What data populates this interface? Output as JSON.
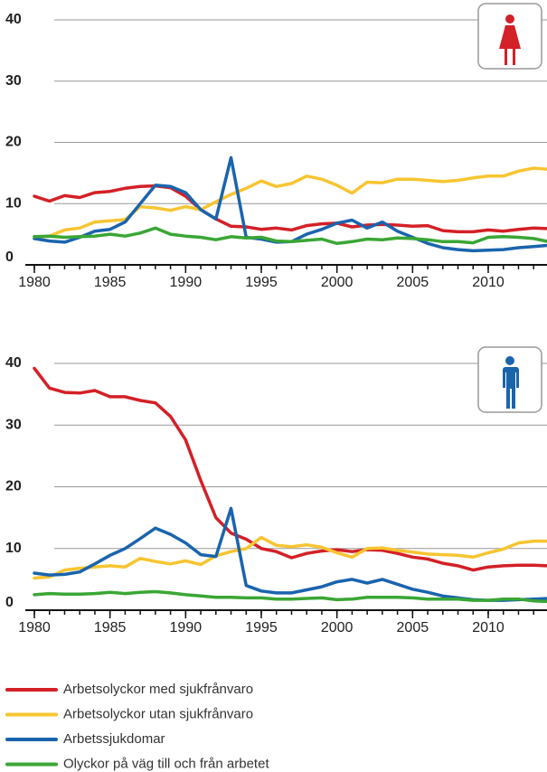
{
  "legend": [
    {
      "name": "Arbetsolyckor med sjukfrånvaro",
      "color": "#d42027"
    },
    {
      "name": "Arbetsolyckor utan sjukfrånvaro",
      "color": "#f7c531"
    },
    {
      "name": "Arbetssjukdomar",
      "color": "#1a64ad"
    },
    {
      "name": "Olyckor på väg till och från arbetet",
      "color": "#3aa635"
    }
  ],
  "chart_data": [
    {
      "type": "line",
      "x": [
        1980,
        1981,
        1982,
        1983,
        1984,
        1985,
        1986,
        1987,
        1988,
        1989,
        1990,
        1991,
        1992,
        1993,
        1994,
        1995,
        1996,
        1997,
        1998,
        1999,
        2000,
        2001,
        2002,
        2003,
        2004,
        2005,
        2006,
        2007,
        2008,
        2009,
        2010,
        2011,
        2012,
        2013,
        2014
      ],
      "xlim": [
        1980,
        2014
      ],
      "xticks": [
        1980,
        1985,
        1990,
        1995,
        2000,
        2005,
        2010
      ],
      "ylim": [
        0,
        40
      ],
      "yticks": [
        0,
        10,
        20,
        30,
        40
      ],
      "grid": true,
      "series": [
        {
          "values": [
            11.2,
            10.4,
            11.3,
            11,
            11.8,
            12,
            12.5,
            12.8,
            12.9,
            12.6,
            11.2,
            9,
            7.5,
            6.3,
            6.2,
            5.8,
            6,
            5.7,
            6.4,
            6.7,
            6.8,
            6.2,
            6.5,
            6.6,
            6.5,
            6.3,
            6.4,
            5.6,
            5.4,
            5.4,
            5.7,
            5.5,
            5.8,
            6,
            5.9
          ]
        },
        {
          "values": [
            4.5,
            4.7,
            5.7,
            6,
            7,
            7.2,
            7.4,
            9.5,
            9.3,
            8.9,
            9.5,
            9,
            10.3,
            11.5,
            12.5,
            13.7,
            12.8,
            13.3,
            14.5,
            14,
            13,
            11.7,
            13.5,
            13.4,
            14,
            14,
            13.8,
            13.6,
            13.8,
            14.2,
            14.5,
            14.5,
            15.3,
            15.8,
            15.6
          ]
        },
        {
          "values": [
            4.3,
            3.9,
            3.7,
            4.5,
            5.5,
            5.8,
            7,
            10,
            13,
            12.8,
            11.8,
            9,
            7.5,
            17.5,
            4.5,
            4.2,
            3.7,
            3.8,
            5,
            5.8,
            6.8,
            7.3,
            6,
            7,
            5.5,
            4.5,
            3.5,
            2.8,
            2.5,
            2.3,
            2.4,
            2.5,
            2.8,
            3,
            3.2
          ]
        },
        {
          "values": [
            4.6,
            4.7,
            4.5,
            4.6,
            4.7,
            5,
            4.7,
            5.2,
            6,
            5,
            4.7,
            4.5,
            4.1,
            4.6,
            4.4,
            4.5,
            3.9,
            3.8,
            4,
            4.2,
            3.5,
            3.8,
            4.2,
            4.1,
            4.4,
            4.3,
            4.1,
            3.8,
            3.8,
            3.6,
            4.5,
            4.6,
            4.5,
            4.3,
            3.8
          ]
        }
      ]
    },
    {
      "type": "line",
      "x": [
        1980,
        1981,
        1982,
        1983,
        1984,
        1985,
        1986,
        1987,
        1988,
        1989,
        1990,
        1991,
        1992,
        1993,
        1994,
        1995,
        1996,
        1997,
        1998,
        1999,
        2000,
        2001,
        2002,
        2003,
        2004,
        2005,
        2006,
        2007,
        2008,
        2009,
        2010,
        2011,
        2012,
        2013,
        2014
      ],
      "xlim": [
        1980,
        2014
      ],
      "xticks": [
        1980,
        1985,
        1990,
        1995,
        2000,
        2005,
        2010
      ],
      "ylim": [
        0,
        40
      ],
      "yticks": [
        0,
        10,
        20,
        30,
        40
      ],
      "grid": true,
      "series": [
        {
          "values": [
            39.2,
            36,
            35.3,
            35.2,
            35.6,
            34.6,
            34.6,
            34,
            33.6,
            31.4,
            27.6,
            21,
            15,
            12.5,
            11.5,
            10,
            9.5,
            8.5,
            9.2,
            9.6,
            9.8,
            9.5,
            9.8,
            9.7,
            9.2,
            8.6,
            8.3,
            7.6,
            7.2,
            6.5,
            7,
            7.2,
            7.3,
            7.3,
            7.2
          ]
        },
        {
          "values": [
            5.2,
            5.4,
            6.5,
            6.8,
            7,
            7.2,
            7,
            8.4,
            7.9,
            7.5,
            8,
            7.4,
            8.8,
            9.5,
            10,
            11.8,
            10.5,
            10.3,
            10.6,
            10.2,
            9.3,
            8.6,
            10,
            10.1,
            9.7,
            9.4,
            9.1,
            9,
            8.9,
            8.6,
            9.3,
            9.9,
            10.9,
            11.2,
            11.2
          ]
        },
        {
          "values": [
            6,
            5.7,
            5.8,
            6.2,
            7.5,
            8.9,
            10,
            11.6,
            13.3,
            12.3,
            10.9,
            9,
            8.7,
            16.5,
            4,
            3.1,
            2.8,
            2.8,
            3.3,
            3.8,
            4.6,
            5,
            4.4,
            5,
            4.2,
            3.4,
            2.9,
            2.3,
            2,
            1.7,
            1.6,
            1.6,
            1.7,
            1.8,
            1.9
          ]
        },
        {
          "values": [
            2.5,
            2.7,
            2.6,
            2.6,
            2.7,
            2.9,
            2.7,
            2.9,
            3,
            2.8,
            2.5,
            2.3,
            2.1,
            2.1,
            2,
            2,
            1.8,
            1.8,
            1.9,
            2,
            1.7,
            1.8,
            2.1,
            2.1,
            2.1,
            2,
            1.8,
            1.8,
            1.8,
            1.6,
            1.6,
            1.8,
            1.8,
            1.5,
            1.4
          ]
        }
      ]
    }
  ]
}
